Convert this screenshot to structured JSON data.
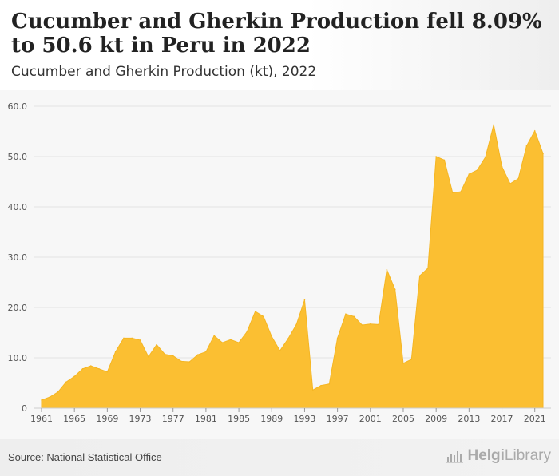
{
  "header": {
    "title": "Cucumber and Gherkin Production fell 8.09% to 50.6 kt in Peru in 2022",
    "subtitle": "Cucumber and Gherkin Production (kt), 2022"
  },
  "footer": {
    "source": "Source: National Statistical Office",
    "brand_pre": "Helgi",
    "brand_post": "Library",
    "brand_icon": "chart-icon"
  },
  "colors": {
    "fill": "#fbbf32",
    "stroke": "#f5b623",
    "grid": "#e3e3e3",
    "axis": "#555555"
  },
  "chart_data": {
    "type": "area",
    "title": "Cucumber and Gherkin Production (kt), 2022",
    "xlabel": "",
    "ylabel": "",
    "xlim": [
      1961,
      2022
    ],
    "ylim": [
      0,
      60
    ],
    "grid": true,
    "legend": "none",
    "y_ticks": [
      "0",
      "10.0",
      "20.0",
      "30.0",
      "40.0",
      "50.0",
      "60.0"
    ],
    "y_tick_values": [
      0,
      10,
      20,
      30,
      40,
      50,
      60
    ],
    "x_ticks": [
      "1961",
      "1965",
      "1969",
      "1973",
      "1977",
      "1981",
      "1985",
      "1989",
      "1993",
      "1997",
      "2001",
      "2005",
      "2009",
      "2013",
      "2017",
      "2021"
    ],
    "x": [
      1961,
      1962,
      1963,
      1964,
      1965,
      1966,
      1967,
      1968,
      1969,
      1970,
      1971,
      1972,
      1973,
      1974,
      1975,
      1976,
      1977,
      1978,
      1979,
      1980,
      1981,
      1982,
      1983,
      1984,
      1985,
      1986,
      1987,
      1988,
      1989,
      1990,
      1991,
      1992,
      1993,
      1994,
      1995,
      1996,
      1997,
      1998,
      1999,
      2000,
      2001,
      2002,
      2003,
      2004,
      2005,
      2006,
      2007,
      2008,
      2009,
      2010,
      2011,
      2012,
      2013,
      2014,
      2015,
      2016,
      2017,
      2018,
      2019,
      2020,
      2021,
      2022
    ],
    "values": [
      1.6,
      2.2,
      3.2,
      5.2,
      6.3,
      7.8,
      8.4,
      7.8,
      7.2,
      11.2,
      13.9,
      13.9,
      13.5,
      10.2,
      12.6,
      10.7,
      10.4,
      9.3,
      9.2,
      10.6,
      11.2,
      14.4,
      13.0,
      13.6,
      13.0,
      15.2,
      19.2,
      18.2,
      14.2,
      11.4,
      13.8,
      16.6,
      21.5,
      3.6,
      4.5,
      4.8,
      13.9,
      18.7,
      18.2,
      16.5,
      16.7,
      16.6,
      27.5,
      23.6,
      8.9,
      9.7,
      26.3,
      27.8,
      50.0,
      49.3,
      42.8,
      43.0,
      46.5,
      47.3,
      49.9,
      56.3,
      48.0,
      44.6,
      45.6,
      52.1,
      55.1,
      50.6
    ]
  }
}
